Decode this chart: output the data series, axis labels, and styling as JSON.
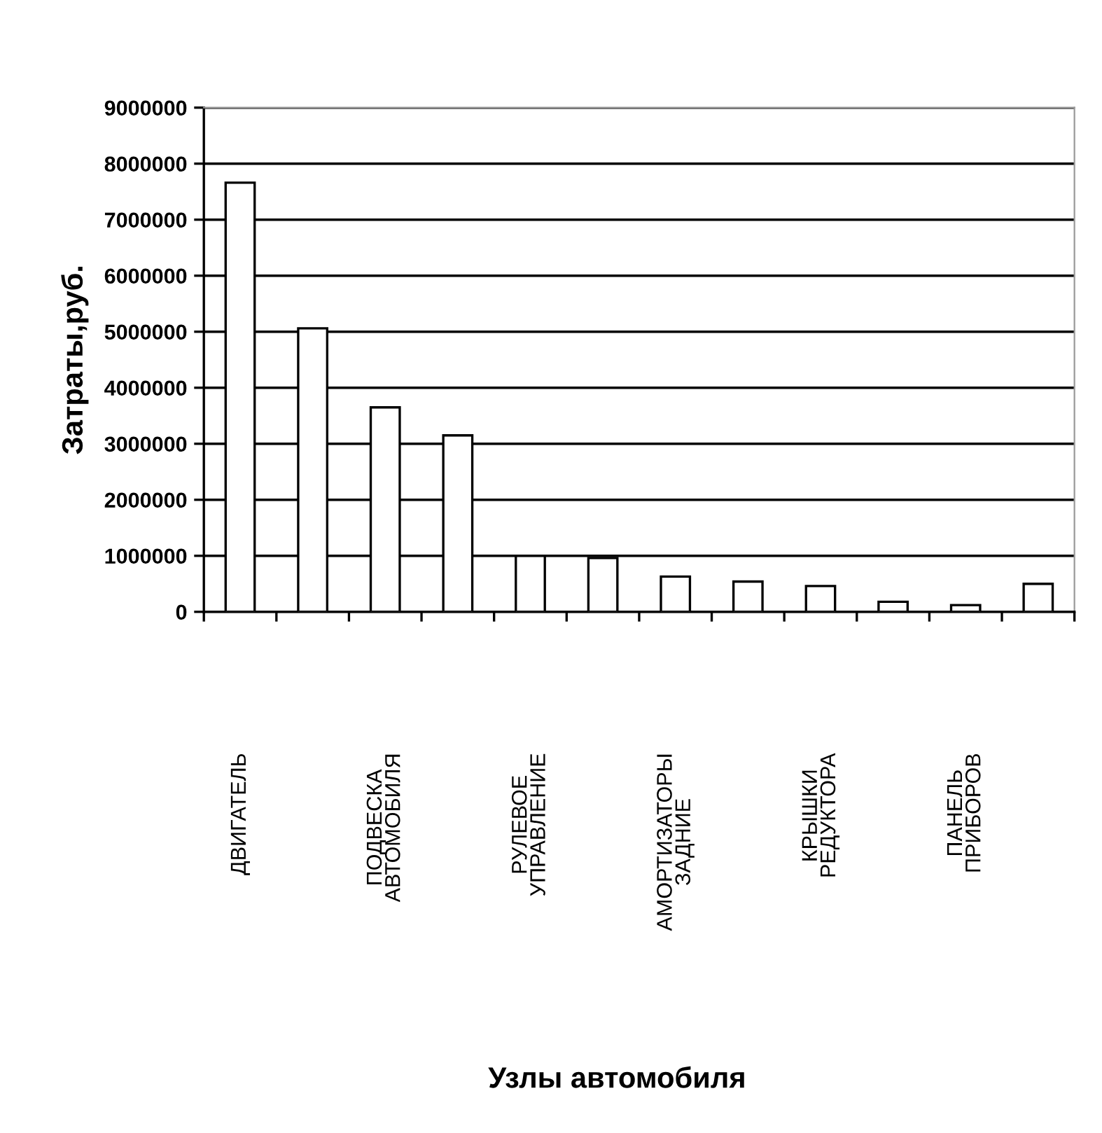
{
  "chart_data": {
    "type": "bar",
    "xlabel": "Узлы автомобиля",
    "ylabel": "Затраты,руб.",
    "categories": [
      "ДВИГАТЕЛЬ",
      null,
      "ПОДВЕСКА\nАВТОМОБИЛЯ",
      null,
      "РУЛЕВОЕ\nУПРАВЛЕНИЕ",
      null,
      "АМОРТИЗАТОРЫ\nЗАДНИЕ",
      null,
      "КРЫШКИ\nРЕДУКТОРА",
      null,
      "ПАНЕЛЬ\nПРИБОРОВ",
      null
    ],
    "values": [
      7660000,
      5060000,
      3650000,
      3150000,
      1000000,
      960000,
      630000,
      540000,
      460000,
      180000,
      120000,
      500000
    ],
    "color": "#ffffff",
    "ylim": [
      0,
      9000000
    ],
    "yticks": [
      0,
      1000000,
      2000000,
      3000000,
      4000000,
      5000000,
      6000000,
      7000000,
      8000000,
      9000000
    ],
    "grid": "y",
    "legend": false
  }
}
